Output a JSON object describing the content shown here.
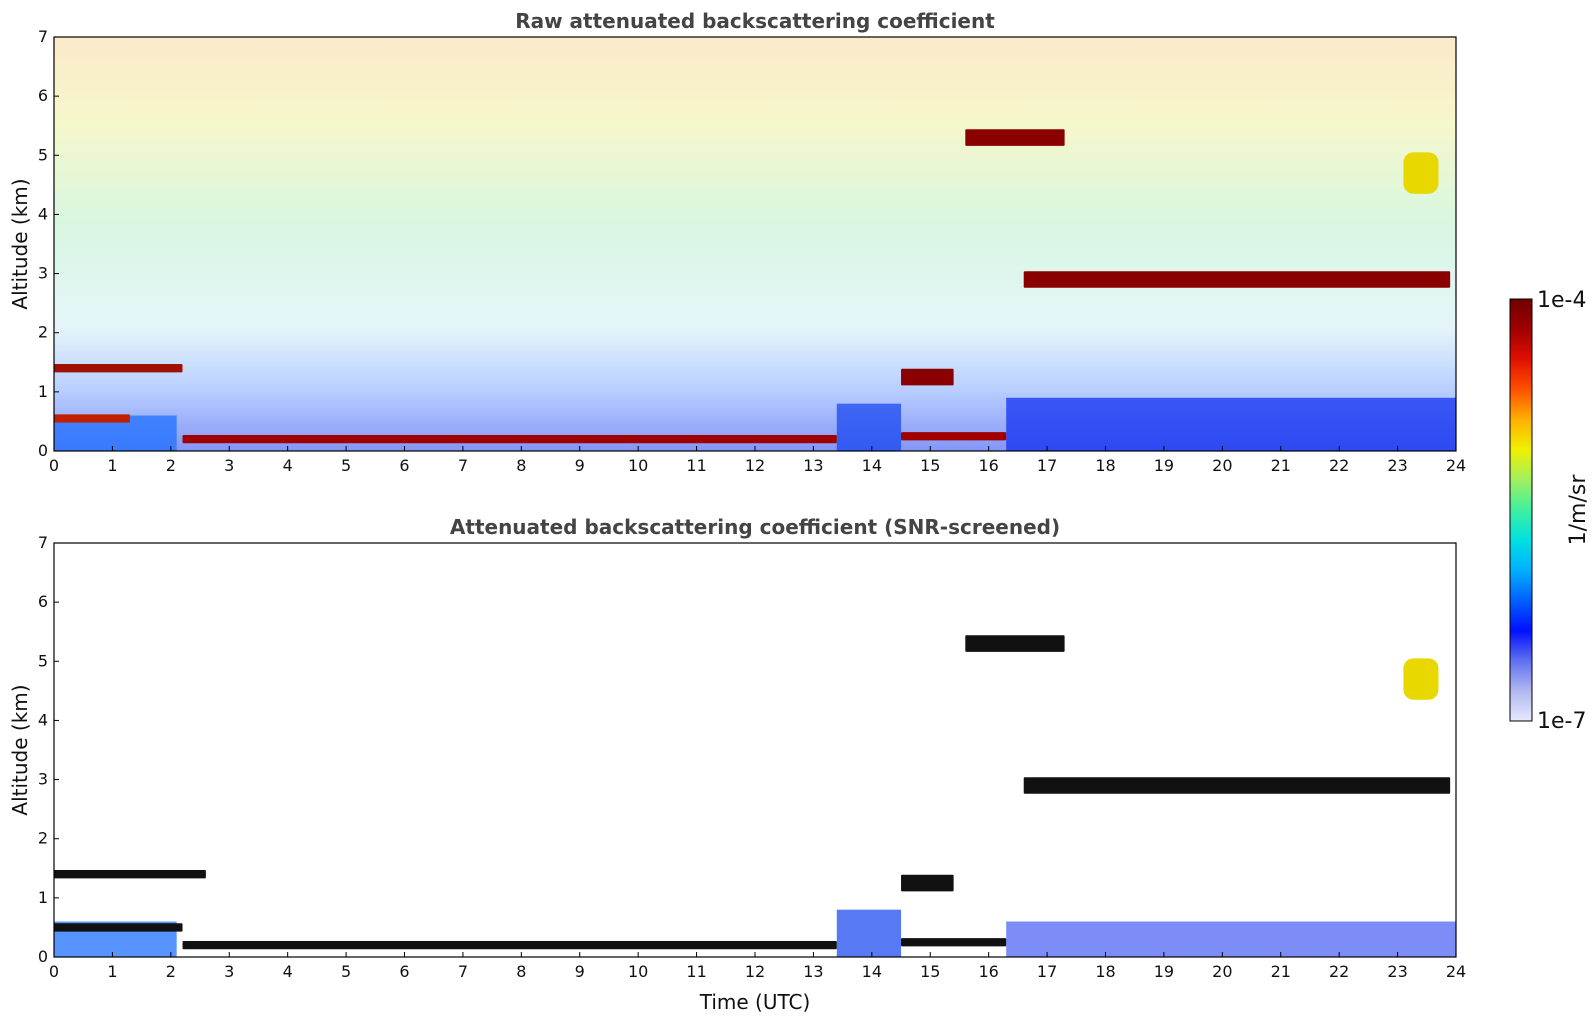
{
  "chart_data": [
    {
      "type": "heatmap",
      "title": "Raw attenuated backscattering coefficient",
      "xlabel": "",
      "ylabel": "Altitude (km)",
      "xlim": [
        0,
        24
      ],
      "ylim": [
        0,
        7
      ],
      "xticks": [
        "0",
        "1",
        "2",
        "3",
        "4",
        "5",
        "6",
        "7",
        "8",
        "9",
        "10",
        "11",
        "12",
        "13",
        "14",
        "15",
        "16",
        "17",
        "18",
        "19",
        "20",
        "21",
        "22",
        "23",
        "24"
      ],
      "yticks": [
        "0",
        "1",
        "2",
        "3",
        "4",
        "5",
        "6",
        "7"
      ],
      "noise_gradient": "low altitude blue, upper altitudes green to red noise",
      "layers": [
        {
          "feature": "aerosol layer",
          "t_start": 0.0,
          "t_end": 2.2,
          "alt_km": 1.4
        },
        {
          "feature": "boundary layer",
          "t_start": 0.0,
          "t_end": 1.3,
          "alt_km": 0.55
        },
        {
          "feature": "near-surface layer",
          "t_start": 2.2,
          "t_end": 13.4,
          "alt_km": 0.2
        },
        {
          "feature": "near-surface layer",
          "t_start": 14.5,
          "t_end": 16.3,
          "alt_km": 0.25
        },
        {
          "feature": "cloud",
          "t_start": 14.5,
          "t_end": 15.4,
          "alt_km": 1.25
        },
        {
          "feature": "cloud",
          "t_start": 16.6,
          "t_end": 23.9,
          "alt_km": 2.9
        },
        {
          "feature": "cloud",
          "t_start": 15.6,
          "t_end": 17.3,
          "alt_km": 5.3
        },
        {
          "feature": "aerosol plume",
          "t_start": 23.1,
          "t_end": 23.7,
          "alt_km": 4.7
        }
      ]
    },
    {
      "type": "heatmap",
      "title": "Attenuated backscattering coefficient (SNR-screened)",
      "xlabel": "Time (UTC)",
      "ylabel": "Altitude (km)",
      "xlim": [
        0,
        24
      ],
      "ylim": [
        0,
        7
      ],
      "xticks": [
        "0",
        "1",
        "2",
        "3",
        "4",
        "5",
        "6",
        "7",
        "8",
        "9",
        "10",
        "11",
        "12",
        "13",
        "14",
        "15",
        "16",
        "17",
        "18",
        "19",
        "20",
        "21",
        "22",
        "23",
        "24"
      ],
      "yticks": [
        "0",
        "1",
        "2",
        "3",
        "4",
        "5",
        "6",
        "7"
      ],
      "noise_gradient": "screened: background removed",
      "layers": [
        {
          "feature": "aerosol layer",
          "t_start": 0.0,
          "t_end": 2.6,
          "alt_km": 1.4
        },
        {
          "feature": "boundary layer",
          "t_start": 0.0,
          "t_end": 2.2,
          "alt_km": 0.5
        },
        {
          "feature": "near-surface layer",
          "t_start": 2.2,
          "t_end": 13.4,
          "alt_km": 0.2
        },
        {
          "feature": "near-surface layer",
          "t_start": 14.5,
          "t_end": 16.3,
          "alt_km": 0.25
        },
        {
          "feature": "cloud",
          "t_start": 14.5,
          "t_end": 15.4,
          "alt_km": 1.25
        },
        {
          "feature": "cloud",
          "t_start": 16.6,
          "t_end": 23.9,
          "alt_km": 2.9
        },
        {
          "feature": "cloud",
          "t_start": 15.6,
          "t_end": 17.3,
          "alt_km": 5.3
        },
        {
          "feature": "aerosol plume",
          "t_start": 23.1,
          "t_end": 23.7,
          "alt_km": 4.7
        }
      ]
    }
  ],
  "colorbar": {
    "label": "1/m/sr",
    "max_label": "1e-4",
    "min_label": "1e-7",
    "colors": [
      "#e8e8ff",
      "#b0b8f0",
      "#6070f0",
      "#0010ff",
      "#0060ff",
      "#00b0ff",
      "#00e0e0",
      "#40f0a0",
      "#a0f060",
      "#f0f000",
      "#ffb000",
      "#ff5000",
      "#e01000",
      "#a00000",
      "#700000"
    ]
  }
}
